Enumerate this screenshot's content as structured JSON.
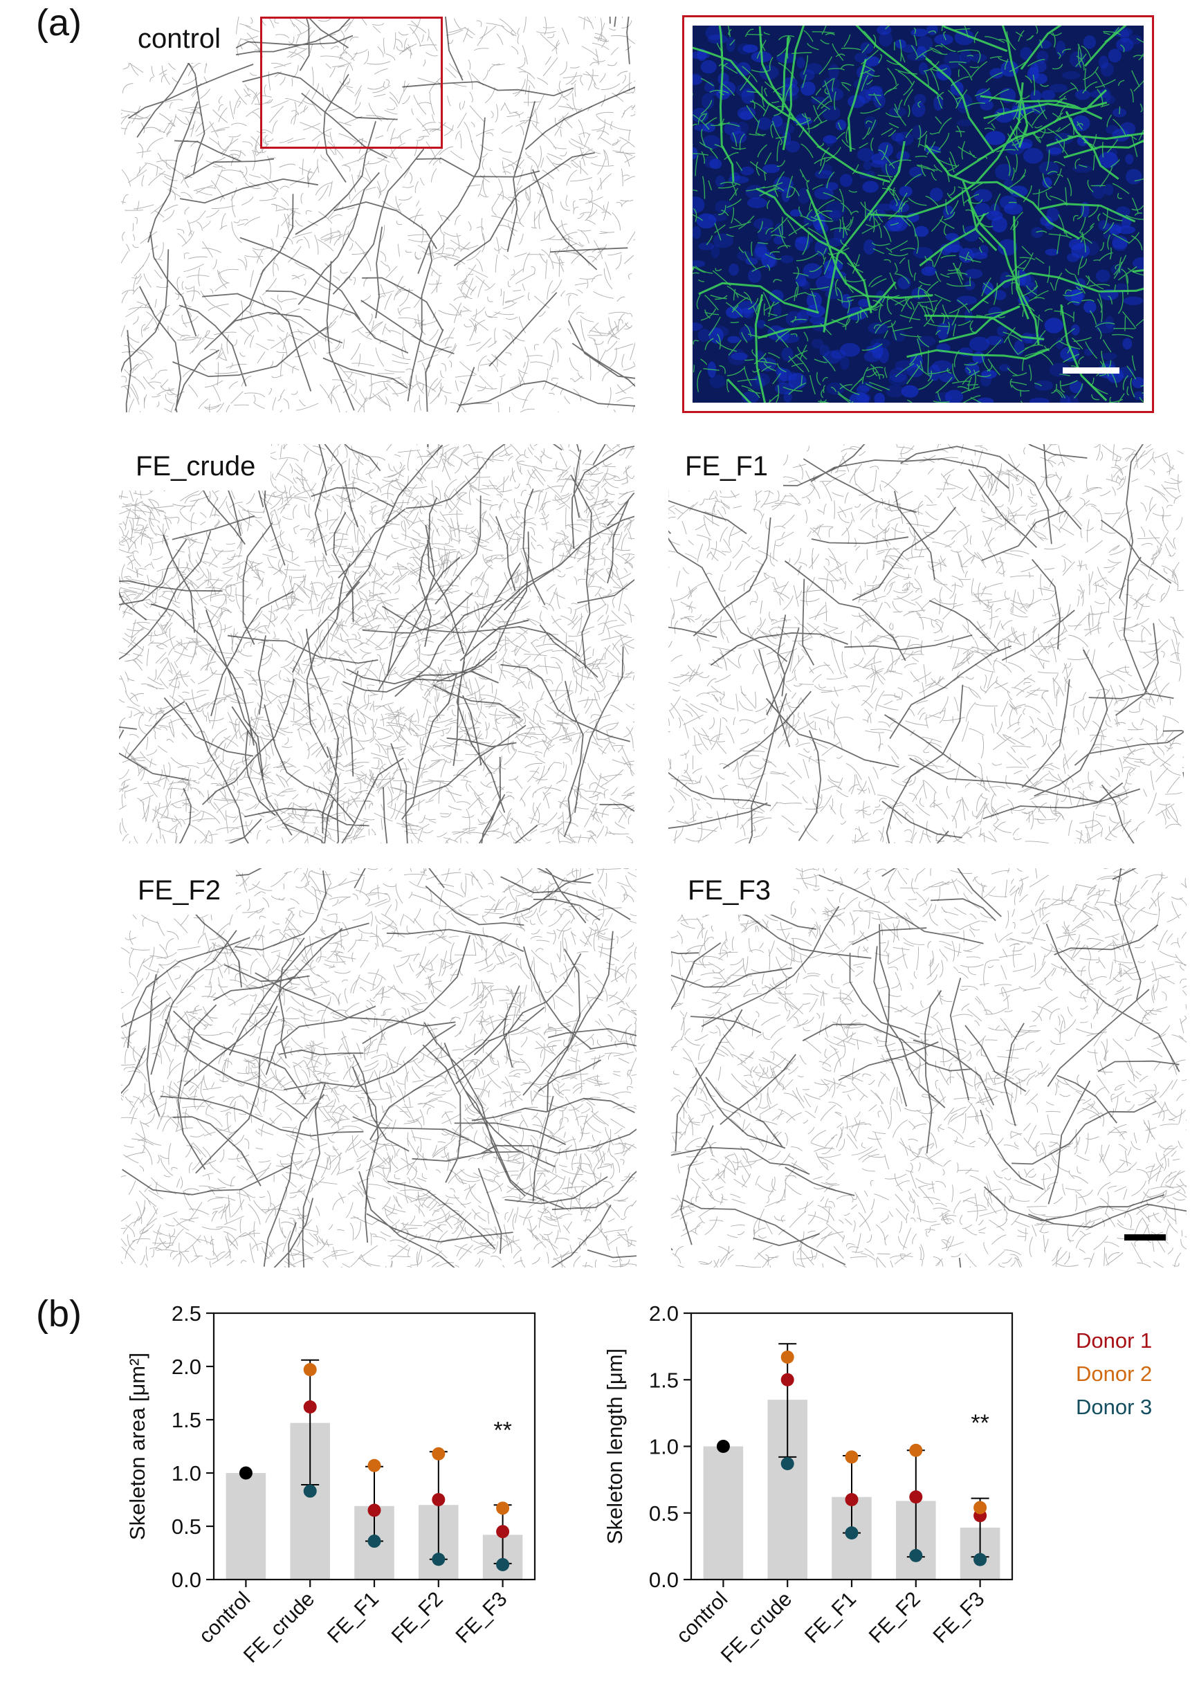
{
  "panel_a_label": "(a)",
  "panel_b_label": "(b)",
  "micrographs": [
    {
      "label": "control"
    },
    {
      "label": "FE_crude"
    },
    {
      "label": "FE_F1"
    },
    {
      "label": "FE_F2"
    },
    {
      "label": "FE_F3"
    }
  ],
  "legend": {
    "donors": [
      {
        "name": "Donor 1",
        "color": "#a80f14"
      },
      {
        "name": "Donor 2",
        "color": "#d0690f"
      },
      {
        "name": "Donor 3",
        "color": "#134e5e"
      }
    ]
  },
  "colors": {
    "bar": "#d3d3d3",
    "inset_border": "#c0121f",
    "control_point": "#000000",
    "network_stain": "#3fd95a",
    "nuclei_stain": "#1530c8"
  },
  "chart_data": [
    {
      "type": "bar",
      "ylabel": "Skeleton area [μm²]",
      "ylim": [
        0,
        2.5
      ],
      "yticks": [
        0.0,
        0.5,
        1.0,
        1.5,
        2.0,
        2.5
      ],
      "ytick_labels": [
        "0.0",
        "0.5",
        "1.0",
        "1.5",
        "2.0",
        "2.5"
      ],
      "categories": [
        "control",
        "FE_crude",
        "FE_F1",
        "FE_F2",
        "FE_F3"
      ],
      "values": [
        1.0,
        1.47,
        0.69,
        0.7,
        0.42
      ],
      "error": [
        [
          1.0,
          1.0
        ],
        [
          0.89,
          2.06
        ],
        [
          0.36,
          1.06
        ],
        [
          0.19,
          1.2
        ],
        [
          0.15,
          0.7
        ]
      ],
      "significance": [
        "",
        "",
        "",
        "",
        "**"
      ],
      "series": [
        {
          "name": "Donor 1",
          "values": [
            null,
            1.62,
            0.65,
            0.75,
            0.45
          ]
        },
        {
          "name": "Donor 2",
          "values": [
            null,
            1.97,
            1.07,
            1.18,
            0.67
          ]
        },
        {
          "name": "Donor 3",
          "values": [
            null,
            0.83,
            0.36,
            0.19,
            0.14
          ]
        }
      ],
      "control_point": 1.0
    },
    {
      "type": "bar",
      "ylabel": "Skeleton length [μm]",
      "ylim": [
        0,
        2.0
      ],
      "yticks": [
        0.0,
        0.5,
        1.0,
        1.5,
        2.0
      ],
      "ytick_labels": [
        "0.0",
        "0.5",
        "1.0",
        "1.5",
        "2.0"
      ],
      "categories": [
        "control",
        "FE_crude",
        "FE_F1",
        "FE_F2",
        "FE_F3"
      ],
      "values": [
        1.0,
        1.35,
        0.62,
        0.59,
        0.39
      ],
      "error": [
        [
          1.0,
          1.0
        ],
        [
          0.92,
          1.77
        ],
        [
          0.35,
          0.93
        ],
        [
          0.17,
          0.97
        ],
        [
          0.17,
          0.61
        ]
      ],
      "significance": [
        "",
        "",
        "",
        "",
        "**"
      ],
      "series": [
        {
          "name": "Donor 1",
          "values": [
            null,
            1.5,
            0.6,
            0.62,
            0.48
          ]
        },
        {
          "name": "Donor 2",
          "values": [
            null,
            1.67,
            0.92,
            0.97,
            0.54
          ]
        },
        {
          "name": "Donor 3",
          "values": [
            null,
            0.87,
            0.35,
            0.18,
            0.15
          ]
        }
      ],
      "control_point": 1.0
    }
  ]
}
